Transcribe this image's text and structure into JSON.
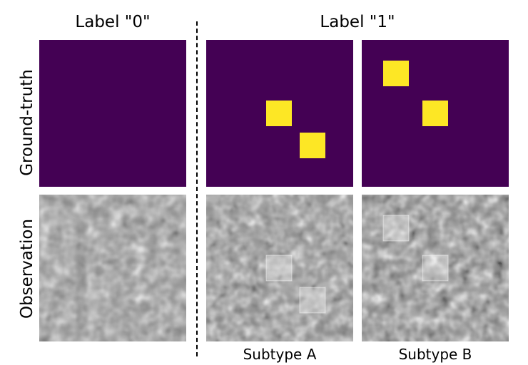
{
  "columns": {
    "label0": "Label \"0\"",
    "label1": "Label \"1\""
  },
  "rows": {
    "ground_truth": "Ground-truth",
    "observation": "Observation"
  },
  "subtypes": {
    "a": "Subtype A",
    "b": "Subtype B"
  },
  "colors": {
    "background": "#440154",
    "marker": "#fde725"
  }
}
